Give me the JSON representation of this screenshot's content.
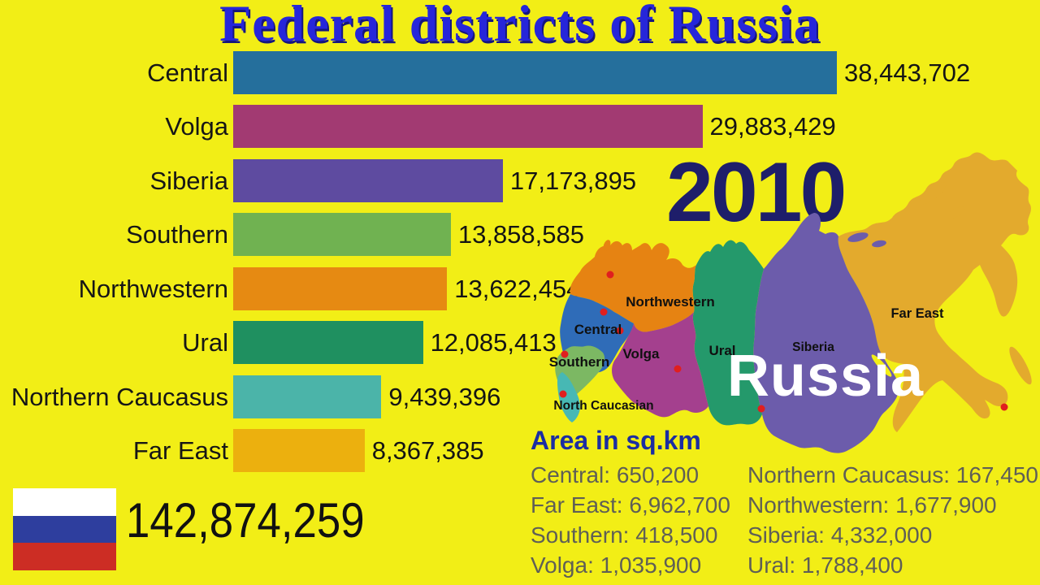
{
  "title": "Federal districts of Russia",
  "year": "2010",
  "total_population": "142,874,259",
  "background_color": "#f2ee16",
  "chart_data": {
    "type": "bar",
    "orientation": "horizontal",
    "title": "Federal districts of Russia",
    "unit": "population (people)",
    "categories": [
      "Central",
      "Volga",
      "Siberia",
      "Southern",
      "Northwestern",
      "Ural",
      "Northern Caucasus",
      "Far East"
    ],
    "values": [
      38443702,
      29883429,
      17173895,
      13858585,
      13622454,
      12085413,
      9439396,
      8367385
    ],
    "value_labels": [
      "38,443,702",
      "29,883,429",
      "17,173,895",
      "13,858,585",
      "13,622,454",
      "12,085,413",
      "9,439,396",
      "8,367,385"
    ],
    "bar_colors": [
      "#256f9c",
      "#a23a72",
      "#5e4ba0",
      "#70b251",
      "#e68a12",
      "#1f9060",
      "#4bb4a9",
      "#ecb00e"
    ],
    "xlim": [
      0,
      38443702
    ],
    "grid": false,
    "legend": false
  },
  "map": {
    "country_label": "Russia",
    "region_labels": [
      "Northwestern",
      "Central",
      "Volga",
      "Southern",
      "North Caucasian",
      "Ural",
      "Siberia",
      "Far East"
    ],
    "region_colors": {
      "northwestern": "#e68312",
      "central": "#2f6cb8",
      "volga": "#a4408e",
      "southern": "#7cb863",
      "north_caucasian": "#47b8b4",
      "ural": "#24996b",
      "siberia": "#6c5cab",
      "far_east": "#e3aa2d"
    },
    "city_dot_color": "#e01f1f"
  },
  "area_panel": {
    "title": "Area in sq.km",
    "left_column": [
      "Central: 650,200",
      "Far East: 6,962,700",
      "Southern: 418,500",
      "Volga: 1,035,900"
    ],
    "right_column": [
      "Northern Caucasus: 167,450",
      "Northwestern: 1,677,900",
      "Siberia: 4,332,000",
      "Ural: 1,788,400"
    ]
  },
  "flag": {
    "stripes": [
      "#ffffff",
      "#2e3e9e",
      "#cc2d24"
    ]
  },
  "accent_colors": {
    "title_blue": "#2626da",
    "year_navy": "#1e1e6a",
    "area_title_blue": "#1b2da2",
    "area_text_gray": "#5f5f56"
  }
}
